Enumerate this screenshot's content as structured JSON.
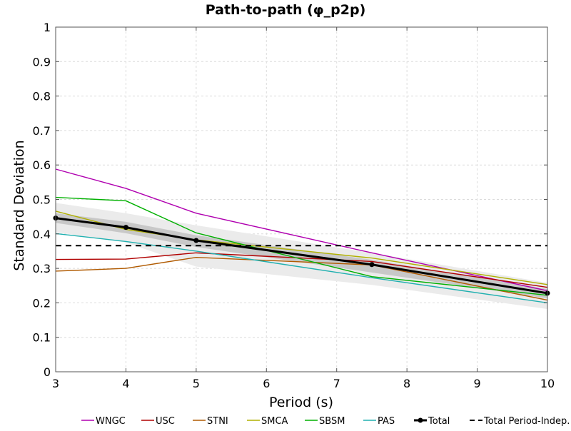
{
  "chart_data": {
    "type": "line",
    "title": "Path-to-path (φ_p2p)",
    "xlabel": "Period (s)",
    "ylabel": "Standard Deviation",
    "xlim": [
      3,
      10
    ],
    "ylim": [
      0,
      1
    ],
    "xticks": [
      "3",
      "4",
      "5",
      "6",
      "7",
      "8",
      "9",
      "10"
    ],
    "yticks": [
      "0",
      "0.1",
      "0.2",
      "0.3",
      "0.4",
      "0.5",
      "0.6",
      "0.7",
      "0.8",
      "0.9",
      "1"
    ],
    "grid": true,
    "legend_position": "bottom",
    "series": [
      {
        "name": "WNGC",
        "color": "#b000b0",
        "x": [
          3,
          4,
          5,
          7.5,
          10
        ],
        "values": [
          0.588,
          0.532,
          0.46,
          0.345,
          0.235
        ]
      },
      {
        "name": "USC",
        "color": "#b00000",
        "x": [
          3,
          4,
          5,
          7.5,
          10
        ],
        "values": [
          0.326,
          0.327,
          0.345,
          0.32,
          0.245
        ]
      },
      {
        "name": "STNI",
        "color": "#b05a00",
        "x": [
          3,
          4,
          5,
          7.5,
          10
        ],
        "values": [
          0.292,
          0.3,
          0.332,
          0.31,
          0.208
        ]
      },
      {
        "name": "SMCA",
        "color": "#b0b000",
        "x": [
          3,
          4,
          5,
          7.5,
          10
        ],
        "values": [
          0.466,
          0.413,
          0.383,
          0.33,
          0.253
        ]
      },
      {
        "name": "SBSM",
        "color": "#00b000",
        "x": [
          3,
          4,
          5,
          7.5,
          10
        ],
        "values": [
          0.506,
          0.496,
          0.403,
          0.276,
          0.222
        ]
      },
      {
        "name": "PAS",
        "color": "#20b0b0",
        "x": [
          3,
          4,
          5,
          7.5,
          10
        ],
        "values": [
          0.401,
          0.378,
          0.35,
          0.273,
          0.2
        ]
      },
      {
        "name": "Total",
        "color": "#000000",
        "markers": true,
        "x": [
          3,
          4,
          5,
          7.5,
          10
        ],
        "values": [
          0.446,
          0.419,
          0.381,
          0.311,
          0.228
        ]
      },
      {
        "name": "Total Period-Indep.",
        "color": "#000000",
        "dashed": true,
        "x": [
          3,
          10
        ],
        "values": [
          0.366,
          0.366
        ]
      }
    ],
    "bands": [
      {
        "color": "#ebebeb",
        "x": [
          3,
          4,
          5,
          7.5,
          10
        ],
        "upper": [
          0.49,
          0.46,
          0.425,
          0.345,
          0.258
        ],
        "lower": [
          0.405,
          0.375,
          0.305,
          0.252,
          0.182
        ]
      },
      {
        "color": "#c8c8c8",
        "x": [
          3,
          4,
          5,
          7.5,
          10
        ],
        "upper": [
          0.46,
          0.435,
          0.396,
          0.325,
          0.24
        ],
        "lower": [
          0.432,
          0.402,
          0.362,
          0.288,
          0.213
        ]
      }
    ]
  }
}
